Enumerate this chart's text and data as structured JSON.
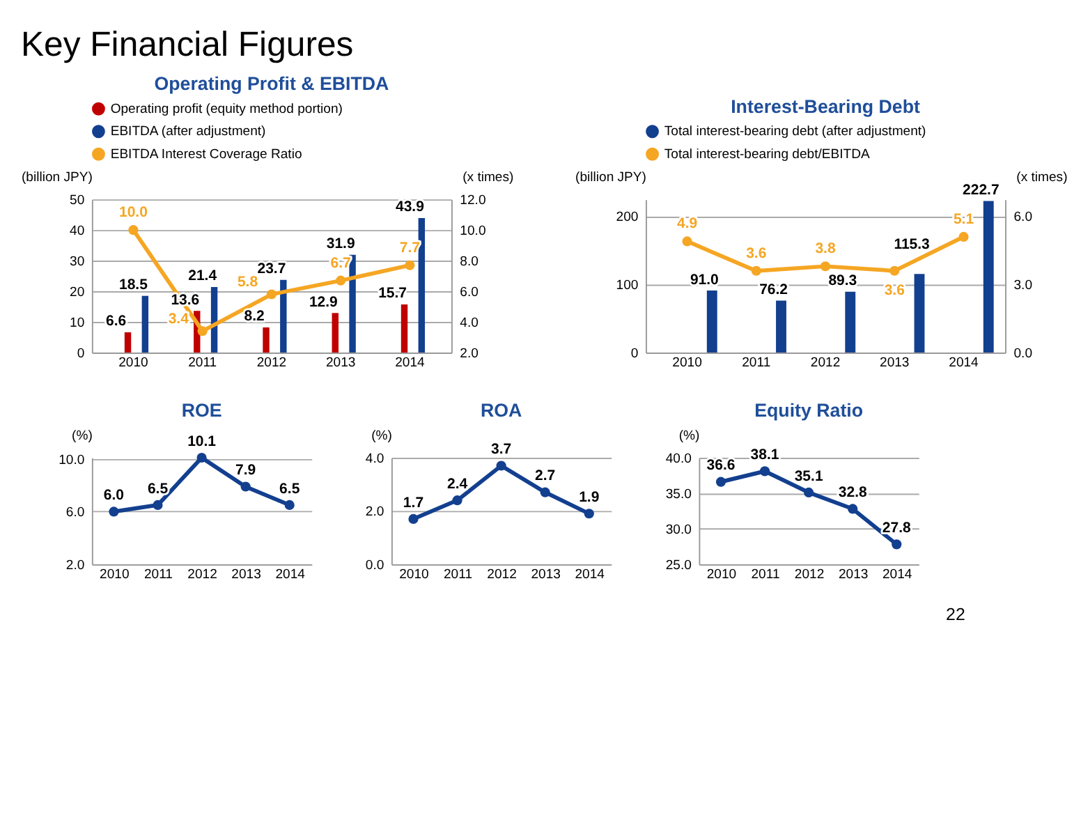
{
  "chart_data": [
    {
      "type": "bar",
      "title": "Operating Profit & EBITDA",
      "annotations": [
        "Key Financial Figures"
      ],
      "ylabel": "(billion JPY)",
      "y2label": "(x times)",
      "categories": [
        "2010",
        "2011",
        "2012",
        "2013",
        "2014"
      ],
      "series": [
        {
          "name": "Operating profit (equity method portion)",
          "type": "bar",
          "color": "#c00000",
          "values": [
            6.6,
            13.6,
            8.2,
            12.9,
            15.7
          ],
          "value_labels": [
            "6.6",
            "13.6",
            "8.2",
            "12.9",
            "15.7"
          ]
        },
        {
          "name": "EBITDA (after adjustment)",
          "type": "bar",
          "color": "#133f8f",
          "values": [
            18.5,
            21.4,
            23.7,
            31.9,
            43.9
          ],
          "value_labels": [
            "18.5",
            "21.4",
            "23.7",
            "31.9",
            "43.9"
          ]
        },
        {
          "name": "EBITDA Interest Coverage Ratio",
          "type": "line",
          "axis": "y2",
          "marker": "circle",
          "color": "#f5a623",
          "values": [
            10.0,
            3.4,
            5.8,
            6.7,
            7.7
          ],
          "value_labels": [
            "10.0",
            "3.4",
            "5.8",
            "6.7",
            "7.7"
          ]
        }
      ],
      "ylim": [
        0,
        50
      ],
      "yticks": [
        0,
        10,
        20,
        30,
        40,
        50
      ],
      "y2lim": [
        2,
        12
      ],
      "y2ticks": [
        {
          "value": 2,
          "label": "2.0"
        },
        {
          "value": 4,
          "label": "4.0"
        },
        {
          "value": 6,
          "label": "6.0"
        },
        {
          "value": 8,
          "label": "8.0"
        },
        {
          "value": 10,
          "label": "10.0"
        },
        {
          "value": 12,
          "label": "12.0"
        }
      ],
      "grid": "y",
      "legend": "top"
    },
    {
      "type": "bar",
      "title": "Interest-Bearing Debt",
      "ylabel": "(billion JPY)",
      "y2label": "(x times)",
      "categories": [
        "2010",
        "2011",
        "2012",
        "2013",
        "2014"
      ],
      "series": [
        {
          "name": "Total interest-bearing debt (after adjustment)",
          "type": "bar",
          "color": "#133f8f",
          "values": [
            91.0,
            76.2,
            89.3,
            115.3,
            222.7
          ],
          "value_labels": [
            "91.0",
            "76.2",
            "89.3",
            "115.3",
            "222.7"
          ]
        },
        {
          "name": "Total interest-bearing debt/EBITDA",
          "type": "line",
          "axis": "y2",
          "marker": "circle",
          "color": "#f5a623",
          "values": [
            4.9,
            3.6,
            3.8,
            3.6,
            5.1
          ],
          "value_labels": [
            "4.9",
            "3.6",
            "3.8",
            "3.6",
            "5.1"
          ]
        }
      ],
      "ylim": [
        0,
        225
      ],
      "yticks": [
        0,
        100,
        200
      ],
      "y2lim": [
        0,
        6.75
      ],
      "y2ticks": [
        {
          "value": 0,
          "label": "0.0"
        },
        {
          "value": 3,
          "label": "3.0"
        },
        {
          "value": 6,
          "label": "6.0"
        }
      ],
      "grid": "y",
      "legend": "top"
    },
    {
      "type": "line",
      "title": "ROE",
      "ylabel": "(%)",
      "categories": [
        "2010",
        "2011",
        "2012",
        "2013",
        "2014"
      ],
      "color": "#133f8f",
      "marker": "circle",
      "values": [
        6.0,
        6.5,
        10.1,
        7.9,
        6.5
      ],
      "value_labels": [
        "6.0",
        "6.5",
        "10.1",
        "7.9",
        "6.5"
      ],
      "ylim": [
        2,
        10.1
      ],
      "yticks": [
        {
          "value": 2,
          "label": "2.0"
        },
        {
          "value": 6,
          "label": "6.0"
        },
        {
          "value": 10,
          "label": "10.0"
        }
      ],
      "grid": "y"
    },
    {
      "type": "line",
      "title": "ROA",
      "ylabel": "(%)",
      "categories": [
        "2010",
        "2011",
        "2012",
        "2013",
        "2014"
      ],
      "color": "#133f8f",
      "marker": "circle",
      "values": [
        1.7,
        2.4,
        3.7,
        2.7,
        1.9
      ],
      "value_labels": [
        "1.7",
        "2.4",
        "3.7",
        "2.7",
        "1.9"
      ],
      "ylim": [
        0,
        4
      ],
      "yticks": [
        {
          "value": 0,
          "label": "0.0"
        },
        {
          "value": 2,
          "label": "2.0"
        },
        {
          "value": 4,
          "label": "4.0"
        }
      ],
      "grid": "y"
    },
    {
      "type": "line",
      "title": "Equity Ratio",
      "ylabel": "(%)",
      "annotations": [
        "22"
      ],
      "categories": [
        "2010",
        "2011",
        "2012",
        "2013",
        "2014"
      ],
      "color": "#133f8f",
      "marker": "circle",
      "values": [
        36.6,
        38.1,
        35.1,
        32.8,
        27.8
      ],
      "value_labels": [
        "36.6",
        "38.1",
        "35.1",
        "32.8",
        "27.8"
      ],
      "ylim": [
        25,
        40
      ],
      "yticks": [
        {
          "value": 25,
          "label": "25.0"
        },
        {
          "value": 30,
          "label": "30.0"
        },
        {
          "value": 35,
          "label": "35.0"
        },
        {
          "value": 40,
          "label": "40.0"
        }
      ],
      "grid": "y"
    }
  ]
}
